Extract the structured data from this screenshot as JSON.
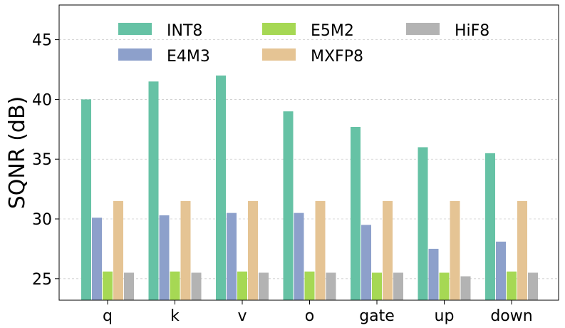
{
  "chart_data": {
    "type": "bar",
    "title": "",
    "xlabel": "",
    "ylabel": "SQNR (dB)",
    "ylim": [
      23.2,
      47.9
    ],
    "yticks": [
      25,
      30,
      35,
      40,
      45
    ],
    "grid": "y-dashed",
    "legend_position": "top",
    "categories": [
      "q",
      "k",
      "v",
      "o",
      "gate",
      "up",
      "down"
    ],
    "series": [
      {
        "name": "INT8",
        "color": "#66c2a5",
        "values": [
          40.0,
          41.5,
          42.0,
          39.0,
          37.7,
          36.0,
          35.5
        ]
      },
      {
        "name": "E4M3",
        "color": "#8da0cb",
        "values": [
          30.1,
          30.3,
          30.5,
          30.5,
          29.5,
          27.5,
          28.1
        ]
      },
      {
        "name": "E5M2",
        "color": "#a6d854",
        "values": [
          25.6,
          25.6,
          25.6,
          25.6,
          25.5,
          25.5,
          25.6
        ]
      },
      {
        "name": "MXFP8",
        "color": "#e5c494",
        "values": [
          31.5,
          31.5,
          31.5,
          31.5,
          31.5,
          31.5,
          31.5
        ]
      },
      {
        "name": "HiF8",
        "color": "#b3b3b3",
        "values": [
          25.5,
          25.5,
          25.5,
          25.5,
          25.5,
          25.2,
          25.5
        ]
      }
    ]
  }
}
